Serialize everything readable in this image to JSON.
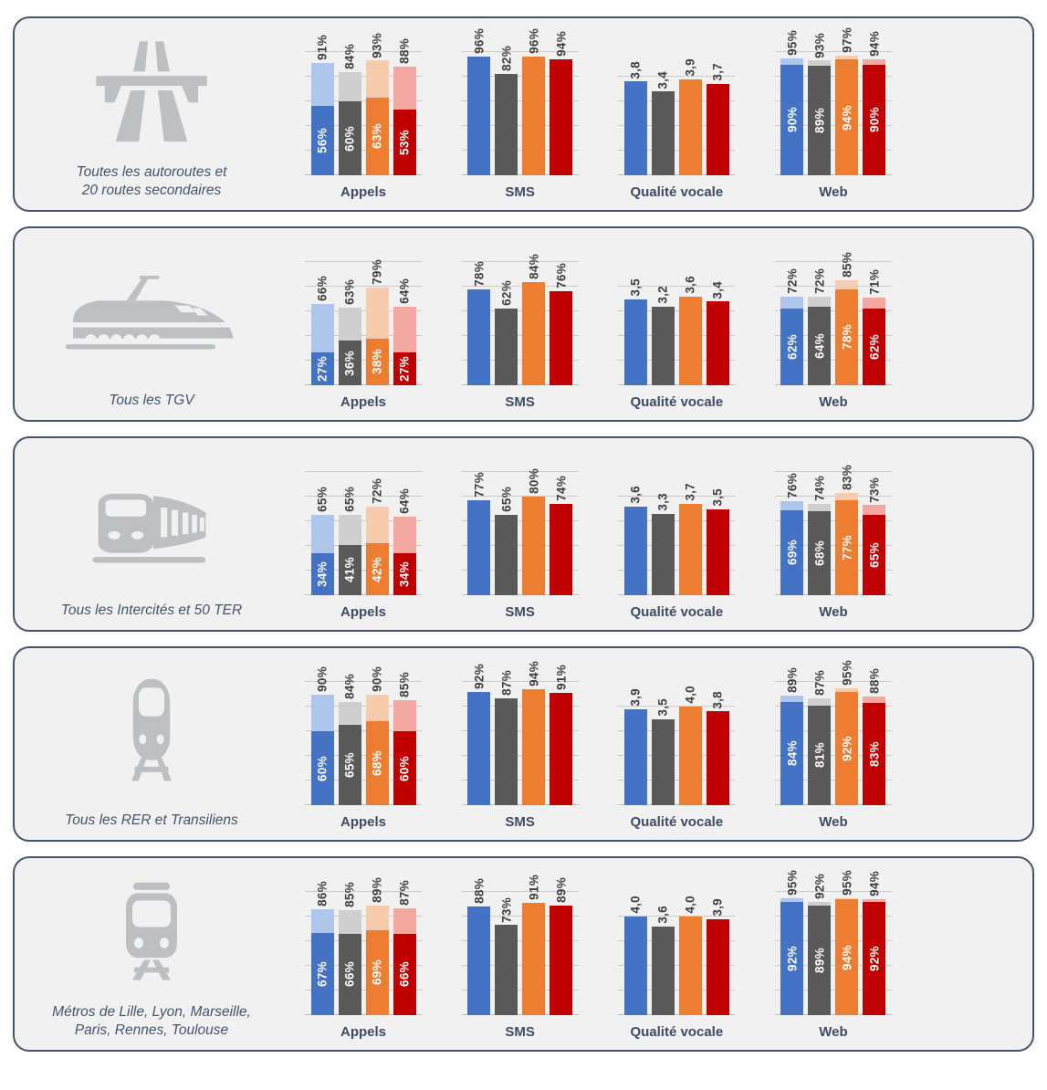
{
  "colors": {
    "panel_border": "#44546A",
    "panel_background": "#F1F1F2",
    "caption_text": "#44546A",
    "chart_title_text": "#3E4C63",
    "value_label_text": "#3F3F3F",
    "inner_label_text": "#FFFFFF",
    "gridline": "#CBCBCB",
    "icon": "#BDBFC3"
  },
  "series_colors": [
    {
      "key": "blue",
      "solid": "#4472C4",
      "light": "#AEC6EC"
    },
    {
      "key": "gray",
      "solid": "#595959",
      "light": "#CFCFCF"
    },
    {
      "key": "orange",
      "solid": "#ED7D31",
      "light": "#F8CBAD"
    },
    {
      "key": "red",
      "solid": "#C00000",
      "light": "#F5A8A0"
    }
  ],
  "chart_data": [
    {
      "group_label": "Toutes les autoroutes et\n20 routes secondaires",
      "icon": "highway-icon",
      "charts": [
        {
          "key": "appels",
          "title": "Appels",
          "type": "bar",
          "ymax": 100,
          "grid_step": 20,
          "series": [
            {
              "color": "blue",
              "total": 91,
              "total_label": "91%",
              "inner": 56,
              "inner_label": "56%"
            },
            {
              "color": "gray",
              "total": 84,
              "total_label": "84%",
              "inner": 60,
              "inner_label": "60%"
            },
            {
              "color": "orange",
              "total": 93,
              "total_label": "93%",
              "inner": 63,
              "inner_label": "63%"
            },
            {
              "color": "red",
              "total": 88,
              "total_label": "88%",
              "inner": 53,
              "inner_label": "53%"
            }
          ]
        },
        {
          "key": "sms",
          "title": "SMS",
          "type": "bar",
          "ymax": 100,
          "grid_step": 20,
          "series": [
            {
              "color": "blue",
              "total": 96,
              "total_label": "96%"
            },
            {
              "color": "gray",
              "total": 82,
              "total_label": "82%"
            },
            {
              "color": "orange",
              "total": 96,
              "total_label": "96%"
            },
            {
              "color": "red",
              "total": 94,
              "total_label": "94%"
            }
          ]
        },
        {
          "key": "qualite-vocale",
          "title": "Qualité vocale",
          "type": "bar",
          "ymax": 4,
          "grid_step": 1,
          "series": [
            {
              "color": "blue",
              "total": 3.8,
              "total_label": "3,8"
            },
            {
              "color": "gray",
              "total": 3.4,
              "total_label": "3,4"
            },
            {
              "color": "orange",
              "total": 3.9,
              "total_label": "3,9"
            },
            {
              "color": "red",
              "total": 3.7,
              "total_label": "3,7"
            }
          ]
        },
        {
          "key": "web",
          "title": "Web",
          "type": "bar",
          "ymax": 100,
          "grid_step": 20,
          "series": [
            {
              "color": "blue",
              "total": 95,
              "total_label": "95%",
              "inner": 90,
              "inner_label": "90%"
            },
            {
              "color": "gray",
              "total": 93,
              "total_label": "93%",
              "inner": 89,
              "inner_label": "89%"
            },
            {
              "color": "orange",
              "total": 97,
              "total_label": "97%",
              "inner": 94,
              "inner_label": "94%"
            },
            {
              "color": "red",
              "total": 94,
              "total_label": "94%",
              "inner": 90,
              "inner_label": "90%"
            }
          ]
        }
      ]
    },
    {
      "group_label": "Tous les TGV",
      "icon": "tgv-icon",
      "charts": [
        {
          "key": "appels",
          "title": "Appels",
          "type": "bar",
          "ymax": 100,
          "grid_step": 20,
          "series": [
            {
              "color": "blue",
              "total": 66,
              "total_label": "66%",
              "inner": 27,
              "inner_label": "27%"
            },
            {
              "color": "gray",
              "total": 63,
              "total_label": "63%",
              "inner": 36,
              "inner_label": "36%"
            },
            {
              "color": "orange",
              "total": 79,
              "total_label": "79%",
              "inner": 38,
              "inner_label": "38%"
            },
            {
              "color": "red",
              "total": 64,
              "total_label": "64%",
              "inner": 27,
              "inner_label": "27%"
            }
          ]
        },
        {
          "key": "sms",
          "title": "SMS",
          "type": "bar",
          "ymax": 100,
          "grid_step": 20,
          "series": [
            {
              "color": "blue",
              "total": 78,
              "total_label": "78%"
            },
            {
              "color": "gray",
              "total": 62,
              "total_label": "62%"
            },
            {
              "color": "orange",
              "total": 84,
              "total_label": "84%"
            },
            {
              "color": "red",
              "total": 76,
              "total_label": "76%"
            }
          ]
        },
        {
          "key": "qualite-vocale",
          "title": "Qualité vocale",
          "type": "bar",
          "ymax": 4,
          "grid_step": 1,
          "series": [
            {
              "color": "blue",
              "total": 3.5,
              "total_label": "3,5"
            },
            {
              "color": "gray",
              "total": 3.2,
              "total_label": "3,2"
            },
            {
              "color": "orange",
              "total": 3.6,
              "total_label": "3,6"
            },
            {
              "color": "red",
              "total": 3.4,
              "total_label": "3,4"
            }
          ]
        },
        {
          "key": "web",
          "title": "Web",
          "type": "bar",
          "ymax": 100,
          "grid_step": 20,
          "series": [
            {
              "color": "blue",
              "total": 72,
              "total_label": "72%",
              "inner": 62,
              "inner_label": "62%"
            },
            {
              "color": "gray",
              "total": 72,
              "total_label": "72%",
              "inner": 64,
              "inner_label": "64%"
            },
            {
              "color": "orange",
              "total": 85,
              "total_label": "85%",
              "inner": 78,
              "inner_label": "78%"
            },
            {
              "color": "red",
              "total": 71,
              "total_label": "71%",
              "inner": 62,
              "inner_label": "62%"
            }
          ]
        }
      ]
    },
    {
      "group_label": "Tous les Intercités et 50 TER",
      "icon": "intercite-icon",
      "charts": [
        {
          "key": "appels",
          "title": "Appels",
          "type": "bar",
          "ymax": 100,
          "grid_step": 20,
          "series": [
            {
              "color": "blue",
              "total": 65,
              "total_label": "65%",
              "inner": 34,
              "inner_label": "34%"
            },
            {
              "color": "gray",
              "total": 65,
              "total_label": "65%",
              "inner": 41,
              "inner_label": "41%"
            },
            {
              "color": "orange",
              "total": 72,
              "total_label": "72%",
              "inner": 42,
              "inner_label": "42%"
            },
            {
              "color": "red",
              "total": 64,
              "total_label": "64%",
              "inner": 34,
              "inner_label": "34%"
            }
          ]
        },
        {
          "key": "sms",
          "title": "SMS",
          "type": "bar",
          "ymax": 100,
          "grid_step": 20,
          "series": [
            {
              "color": "blue",
              "total": 77,
              "total_label": "77%"
            },
            {
              "color": "gray",
              "total": 65,
              "total_label": "65%"
            },
            {
              "color": "orange",
              "total": 80,
              "total_label": "80%"
            },
            {
              "color": "red",
              "total": 74,
              "total_label": "74%"
            }
          ]
        },
        {
          "key": "qualite-vocale",
          "title": "Qualité vocale",
          "type": "bar",
          "ymax": 4,
          "grid_step": 1,
          "series": [
            {
              "color": "blue",
              "total": 3.6,
              "total_label": "3,6"
            },
            {
              "color": "gray",
              "total": 3.3,
              "total_label": "3,3"
            },
            {
              "color": "orange",
              "total": 3.7,
              "total_label": "3,7"
            },
            {
              "color": "red",
              "total": 3.5,
              "total_label": "3,5"
            }
          ]
        },
        {
          "key": "web",
          "title": "Web",
          "type": "bar",
          "ymax": 100,
          "grid_step": 20,
          "series": [
            {
              "color": "blue",
              "total": 76,
              "total_label": "76%",
              "inner": 69,
              "inner_label": "69%"
            },
            {
              "color": "gray",
              "total": 74,
              "total_label": "74%",
              "inner": 68,
              "inner_label": "68%"
            },
            {
              "color": "orange",
              "total": 83,
              "total_label": "83%",
              "inner": 77,
              "inner_label": "77%"
            },
            {
              "color": "red",
              "total": 73,
              "total_label": "73%",
              "inner": 65,
              "inner_label": "65%"
            }
          ]
        }
      ]
    },
    {
      "group_label": "Tous les RER et Transiliens",
      "icon": "rer-icon",
      "charts": [
        {
          "key": "appels",
          "title": "Appels",
          "type": "bar",
          "ymax": 100,
          "grid_step": 20,
          "series": [
            {
              "color": "blue",
              "total": 90,
              "total_label": "90%",
              "inner": 60,
              "inner_label": "60%"
            },
            {
              "color": "gray",
              "total": 84,
              "total_label": "84%",
              "inner": 65,
              "inner_label": "65%"
            },
            {
              "color": "orange",
              "total": 90,
              "total_label": "90%",
              "inner": 68,
              "inner_label": "68%"
            },
            {
              "color": "red",
              "total": 85,
              "total_label": "85%",
              "inner": 60,
              "inner_label": "60%"
            }
          ]
        },
        {
          "key": "sms",
          "title": "SMS",
          "type": "bar",
          "ymax": 100,
          "grid_step": 20,
          "series": [
            {
              "color": "blue",
              "total": 92,
              "total_label": "92%"
            },
            {
              "color": "gray",
              "total": 87,
              "total_label": "87%"
            },
            {
              "color": "orange",
              "total": 94,
              "total_label": "94%"
            },
            {
              "color": "red",
              "total": 91,
              "total_label": "91%"
            }
          ]
        },
        {
          "key": "qualite-vocale",
          "title": "Qualité vocale",
          "type": "bar",
          "ymax": 4,
          "grid_step": 1,
          "series": [
            {
              "color": "blue",
              "total": 3.9,
              "total_label": "3,9"
            },
            {
              "color": "gray",
              "total": 3.5,
              "total_label": "3,5"
            },
            {
              "color": "orange",
              "total": 4.0,
              "total_label": "4,0"
            },
            {
              "color": "red",
              "total": 3.8,
              "total_label": "3,8"
            }
          ]
        },
        {
          "key": "web",
          "title": "Web",
          "type": "bar",
          "ymax": 100,
          "grid_step": 20,
          "series": [
            {
              "color": "blue",
              "total": 89,
              "total_label": "89%",
              "inner": 84,
              "inner_label": "84%"
            },
            {
              "color": "gray",
              "total": 87,
              "total_label": "87%",
              "inner": 81,
              "inner_label": "81%"
            },
            {
              "color": "orange",
              "total": 95,
              "total_label": "95%",
              "inner": 92,
              "inner_label": "92%"
            },
            {
              "color": "red",
              "total": 88,
              "total_label": "88%",
              "inner": 83,
              "inner_label": "83%"
            }
          ]
        }
      ]
    },
    {
      "group_label": "Métros de Lille, Lyon, Marseille,\nParis, Rennes, Toulouse",
      "icon": "metro-icon",
      "charts": [
        {
          "key": "appels",
          "title": "Appels",
          "type": "bar",
          "ymax": 100,
          "grid_step": 20,
          "series": [
            {
              "color": "blue",
              "total": 86,
              "total_label": "86%",
              "inner": 67,
              "inner_label": "67%"
            },
            {
              "color": "gray",
              "total": 85,
              "total_label": "85%",
              "inner": 66,
              "inner_label": "66%"
            },
            {
              "color": "orange",
              "total": 89,
              "total_label": "89%",
              "inner": 69,
              "inner_label": "69%"
            },
            {
              "color": "red",
              "total": 87,
              "total_label": "87%",
              "inner": 66,
              "inner_label": "66%"
            }
          ]
        },
        {
          "key": "sms",
          "title": "SMS",
          "type": "bar",
          "ymax": 100,
          "grid_step": 20,
          "series": [
            {
              "color": "blue",
              "total": 88,
              "total_label": "88%"
            },
            {
              "color": "gray",
              "total": 73,
              "total_label": "73%"
            },
            {
              "color": "orange",
              "total": 91,
              "total_label": "91%"
            },
            {
              "color": "red",
              "total": 89,
              "total_label": "89%"
            }
          ]
        },
        {
          "key": "qualite-vocale",
          "title": "Qualité vocale",
          "type": "bar",
          "ymax": 4,
          "grid_step": 1,
          "series": [
            {
              "color": "blue",
              "total": 4.0,
              "total_label": "4,0"
            },
            {
              "color": "gray",
              "total": 3.6,
              "total_label": "3,6"
            },
            {
              "color": "orange",
              "total": 4.0,
              "total_label": "4,0"
            },
            {
              "color": "red",
              "total": 3.9,
              "total_label": "3,9"
            }
          ]
        },
        {
          "key": "web",
          "title": "Web",
          "type": "bar",
          "ymax": 100,
          "grid_step": 20,
          "series": [
            {
              "color": "blue",
              "total": 95,
              "total_label": "95%",
              "inner": 92,
              "inner_label": "92%"
            },
            {
              "color": "gray",
              "total": 92,
              "total_label": "92%",
              "inner": 89,
              "inner_label": "89%"
            },
            {
              "color": "orange",
              "total": 95,
              "total_label": "95%",
              "inner": 94,
              "inner_label": "94%"
            },
            {
              "color": "red",
              "total": 94,
              "total_label": "94%",
              "inner": 92,
              "inner_label": "92%"
            }
          ]
        }
      ]
    }
  ]
}
